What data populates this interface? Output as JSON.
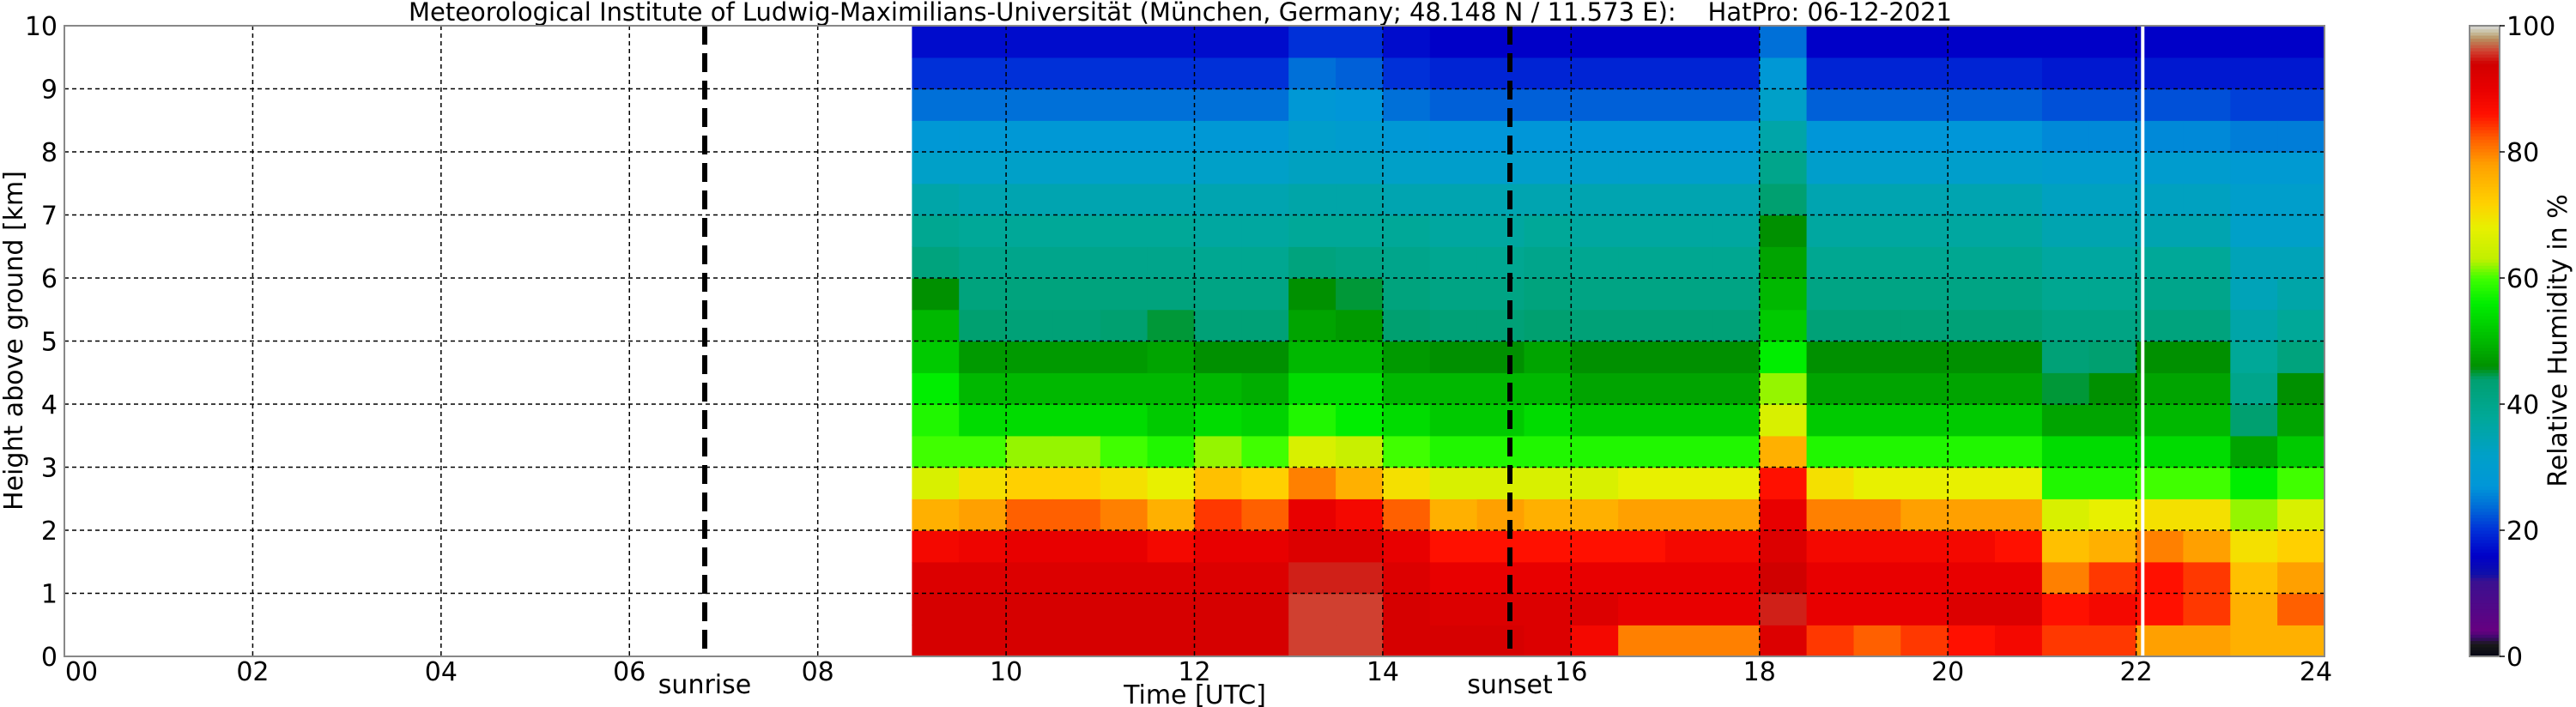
{
  "chart_data": {
    "type": "heatmap",
    "title": "Meteorological Institute of Ludwig-Maximilians-Universität (München, Germany; 48.148 N / 11.573 E):    HatPro: 06-12-2021",
    "xlabel": "Time [UTC]",
    "ylabel": "Height above ground [km]",
    "xlim": [
      0,
      24
    ],
    "ylim": [
      0,
      10
    ],
    "x_ticks": [
      "00",
      "02",
      "04",
      "06",
      "08",
      "10",
      "12",
      "14",
      "16",
      "18",
      "20",
      "22",
      "24"
    ],
    "y_ticks": [
      "0",
      "1",
      "2",
      "3",
      "4",
      "5",
      "6",
      "7",
      "8",
      "9",
      "10"
    ],
    "grid": true,
    "annotations": [
      {
        "label": "sunrise",
        "time": 6.8
      },
      {
        "label": "sunset",
        "time": 15.35
      }
    ],
    "data_gap_time": 22.07,
    "time_step_h": 0.5,
    "height_step_km": 0.5,
    "times": [
      9.0,
      9.5,
      10.0,
      10.5,
      11.0,
      11.5,
      12.0,
      12.5,
      13.0,
      13.5,
      14.0,
      14.5,
      15.0,
      15.5,
      16.0,
      16.5,
      17.0,
      17.5,
      18.0,
      18.5,
      19.0,
      19.5,
      20.0,
      20.5,
      21.0,
      21.5,
      22.0,
      22.5,
      23.0,
      23.5
    ],
    "heights_km": [
      0.25,
      0.75,
      1.25,
      1.75,
      2.25,
      2.75,
      3.25,
      3.75,
      4.25,
      4.75,
      5.25,
      5.75,
      6.25,
      6.75,
      7.25,
      7.75,
      8.25,
      8.75,
      9.25,
      9.75
    ],
    "values": [
      [
        93,
        93,
        92,
        88,
        76,
        66,
        60,
        58,
        56,
        52,
        50,
        46,
        42,
        39,
        36,
        32,
        28,
        24,
        20,
        17
      ],
      [
        93,
        93,
        92,
        89,
        78,
        70,
        60,
        54,
        50,
        47,
        44,
        42,
        40,
        38,
        35,
        32,
        28,
        24,
        20,
        17
      ],
      [
        93,
        93,
        92,
        90,
        82,
        72,
        62,
        54,
        50,
        47,
        43,
        42,
        40,
        38,
        35,
        32,
        28,
        24,
        20,
        17
      ],
      [
        93,
        93,
        92,
        90,
        82,
        72,
        62,
        54,
        50,
        47,
        43,
        42,
        40,
        38,
        35,
        32,
        28,
        24,
        20,
        17
      ],
      [
        93,
        93,
        92,
        90,
        80,
        70,
        60,
        54,
        50,
        47,
        44,
        42,
        40,
        38,
        35,
        32,
        28,
        24,
        20,
        17
      ],
      [
        93,
        93,
        92,
        88,
        76,
        68,
        58,
        52,
        50,
        48,
        45,
        42,
        40,
        38,
        35,
        32,
        28,
        24,
        20,
        17
      ],
      [
        93,
        93,
        92,
        90,
        84,
        74,
        62,
        54,
        50,
        46,
        43,
        41,
        39,
        37,
        35,
        32,
        28,
        24,
        20,
        17
      ],
      [
        93,
        93,
        92,
        90,
        82,
        72,
        60,
        53,
        49,
        46,
        43,
        41,
        39,
        37,
        35,
        32,
        28,
        24,
        20,
        17
      ],
      [
        96,
        96,
        95,
        92,
        90,
        80,
        66,
        58,
        54,
        50,
        48,
        46,
        42,
        38,
        36,
        33,
        31,
        28,
        24,
        20
      ],
      [
        96,
        96,
        95,
        92,
        88,
        76,
        64,
        56,
        54,
        50,
        47,
        45,
        41,
        38,
        36,
        33,
        30,
        27,
        23,
        20
      ],
      [
        93,
        93,
        92,
        90,
        82,
        70,
        60,
        54,
        50,
        47,
        44,
        42,
        40,
        38,
        35,
        32,
        28,
        24,
        20,
        17
      ],
      [
        93,
        92,
        90,
        86,
        76,
        66,
        58,
        52,
        50,
        46,
        43,
        41,
        39,
        37,
        35,
        31,
        27,
        23,
        19,
        16
      ],
      [
        93,
        92,
        90,
        86,
        78,
        66,
        58,
        52,
        50,
        46,
        43,
        41,
        39,
        37,
        35,
        31,
        27,
        23,
        19,
        16
      ],
      [
        92,
        92,
        90,
        86,
        76,
        66,
        58,
        54,
        50,
        48,
        44,
        42,
        40,
        38,
        35,
        31,
        27,
        23,
        19,
        16
      ],
      [
        88,
        92,
        90,
        86,
        76,
        66,
        58,
        52,
        48,
        46,
        43,
        41,
        39,
        37,
        35,
        31,
        27,
        23,
        19,
        16
      ],
      [
        80,
        90,
        90,
        86,
        78,
        68,
        58,
        52,
        48,
        46,
        43,
        41,
        39,
        37,
        35,
        31,
        27,
        23,
        19,
        16
      ],
      [
        80,
        90,
        90,
        88,
        78,
        68,
        58,
        52,
        48,
        46,
        43,
        41,
        39,
        37,
        35,
        31,
        27,
        23,
        19,
        16
      ],
      [
        80,
        90,
        90,
        88,
        78,
        68,
        58,
        52,
        48,
        46,
        43,
        41,
        39,
        37,
        35,
        31,
        27,
        23,
        19,
        16
      ],
      [
        92,
        95,
        94,
        92,
        90,
        86,
        76,
        66,
        62,
        56,
        52,
        50,
        48,
        46,
        44,
        40,
        36,
        32,
        28,
        24
      ],
      [
        84,
        90,
        90,
        88,
        80,
        70,
        58,
        52,
        48,
        46,
        43,
        41,
        39,
        37,
        35,
        31,
        27,
        23,
        19,
        16
      ],
      [
        82,
        90,
        90,
        88,
        80,
        68,
        58,
        52,
        48,
        46,
        43,
        41,
        39,
        37,
        35,
        31,
        27,
        23,
        19,
        16
      ],
      [
        84,
        90,
        90,
        88,
        78,
        68,
        58,
        52,
        48,
        46,
        43,
        41,
        39,
        37,
        35,
        31,
        27,
        23,
        19,
        16
      ],
      [
        86,
        92,
        90,
        88,
        78,
        68,
        58,
        52,
        48,
        46,
        43,
        41,
        39,
        37,
        35,
        31,
        27,
        23,
        19,
        16
      ],
      [
        88,
        92,
        90,
        86,
        78,
        68,
        58,
        52,
        48,
        46,
        43,
        41,
        39,
        37,
        35,
        31,
        27,
        23,
        19,
        16
      ],
      [
        84,
        86,
        80,
        74,
        66,
        58,
        54,
        48,
        45,
        43,
        41,
        39,
        37,
        35,
        33,
        30,
        26,
        22,
        18,
        16
      ],
      [
        84,
        88,
        84,
        76,
        68,
        58,
        54,
        48,
        46,
        44,
        41,
        39,
        37,
        35,
        33,
        30,
        26,
        22,
        18,
        16
      ],
      [
        78,
        86,
        86,
        80,
        70,
        60,
        54,
        50,
        48,
        46,
        42,
        40,
        38,
        35,
        33,
        30,
        26,
        22,
        18,
        16
      ],
      [
        78,
        84,
        84,
        78,
        70,
        60,
        54,
        50,
        48,
        46,
        42,
        40,
        38,
        35,
        33,
        30,
        26,
        22,
        18,
        16
      ],
      [
        76,
        76,
        74,
        70,
        62,
        56,
        48,
        44,
        40,
        38,
        36,
        34,
        34,
        32,
        31,
        29,
        25,
        21,
        18,
        16
      ],
      [
        76,
        82,
        78,
        72,
        66,
        60,
        52,
        48,
        46,
        42,
        38,
        36,
        34,
        32,
        31,
        29,
        25,
        21,
        18,
        16
      ]
    ],
    "colorbar": {
      "label": "Relative Humidity in %",
      "range": [
        0,
        100
      ],
      "ticks": [
        "0",
        "20",
        "40",
        "60",
        "80",
        "100"
      ],
      "stops": [
        [
          0,
          "#050514"
        ],
        [
          2,
          "#1a1a1a"
        ],
        [
          3,
          "#3a0a6a"
        ],
        [
          4,
          "#660080"
        ],
        [
          12,
          "#3a1090"
        ],
        [
          13,
          "#1010a8"
        ],
        [
          16,
          "#0000c8"
        ],
        [
          20,
          "#0030d8"
        ],
        [
          24,
          "#0070d8"
        ],
        [
          27,
          "#0096d8"
        ],
        [
          32,
          "#00a0c8"
        ],
        [
          38,
          "#00a898"
        ],
        [
          44,
          "#00a070"
        ],
        [
          46,
          "#009000"
        ],
        [
          50,
          "#00b800"
        ],
        [
          56,
          "#00ee00"
        ],
        [
          60,
          "#40ff00"
        ],
        [
          63,
          "#c0f000"
        ],
        [
          68,
          "#e8f000"
        ],
        [
          72,
          "#ffd000"
        ],
        [
          78,
          "#ffa000"
        ],
        [
          82,
          "#ff6000"
        ],
        [
          86,
          "#ff1000"
        ],
        [
          90,
          "#e80000"
        ],
        [
          94,
          "#d00000"
        ],
        [
          96,
          "#d04030"
        ],
        [
          98,
          "#b89060"
        ],
        [
          99,
          "#c8c0a0"
        ],
        [
          100,
          "#d8d8d8"
        ]
      ]
    }
  }
}
